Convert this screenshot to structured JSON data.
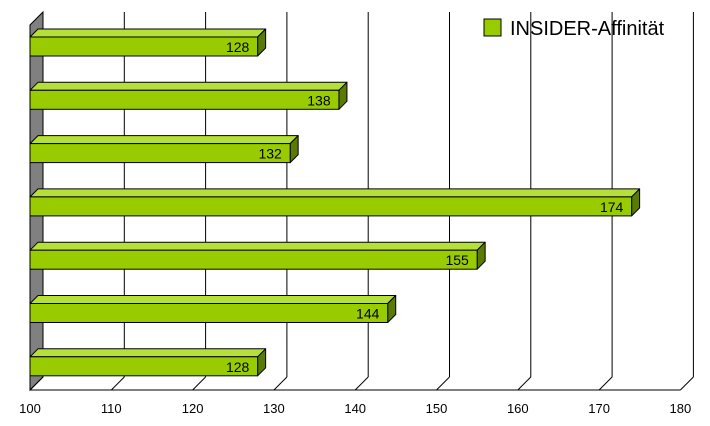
{
  "chart_data": {
    "type": "bar",
    "orientation": "horizontal",
    "style": "3d",
    "categories": [
      "",
      "",
      "",
      "",
      "",
      "",
      ""
    ],
    "series": [
      {
        "name": "INSIDER-Affinität",
        "values": [
          128,
          138,
          132,
          174,
          155,
          144,
          128
        ],
        "color": "#99cc00"
      }
    ],
    "data_labels": [
      "128",
      "138",
      "132",
      "174",
      "155",
      "144",
      "128"
    ],
    "xlim": [
      100,
      180
    ],
    "x_ticks": [
      100,
      110,
      120,
      130,
      140,
      150,
      160,
      170,
      180
    ],
    "x_tick_labels": [
      "100",
      "110",
      "120",
      "130",
      "140",
      "150",
      "160",
      "170",
      "180"
    ],
    "grid": true,
    "legend_position": "top-right",
    "colors": {
      "bar_front": "#99cc00",
      "bar_top": "#b5e03a",
      "bar_side": "#5a7a00",
      "wall": "#808080",
      "grid": "#000000"
    }
  }
}
